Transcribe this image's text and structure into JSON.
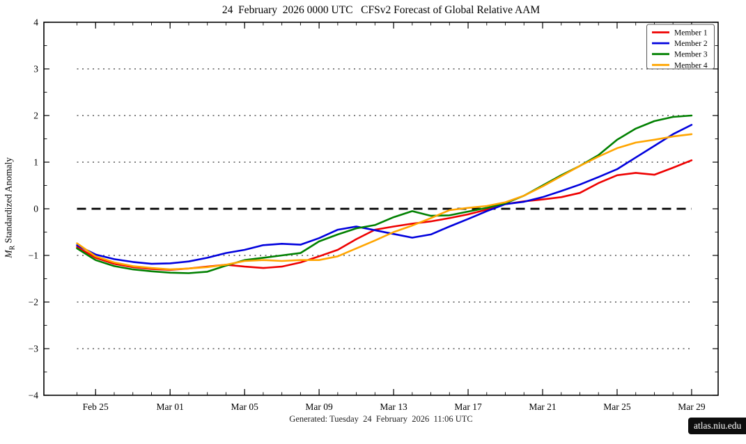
{
  "title": "24  February  2026 0000 UTC   CFSv2 Forecast of Global Relative AAM",
  "ylabel": {
    "var": "M",
    "sub": "R",
    "rest": " Standardized Anomaly"
  },
  "footer": {
    "generated": "Generated: Tuesday  24  February  2026  11:06 UTC",
    "badge": "atlas.niu.edu"
  },
  "colors": {
    "member1": "#ee0000",
    "member2": "#0000dd",
    "member3": "#008000",
    "member4": "#ffa500",
    "grid": "#808080",
    "zero_line": "#000000",
    "frame": "#000000",
    "legend_border": "#555555"
  },
  "chart_data": {
    "type": "line",
    "title": "24  February  2026 0000 UTC   CFSv2 Forecast of Global Relative AAM",
    "xlabel": "",
    "ylabel": "M_R Standardized Anomaly",
    "ylim": [
      -4,
      4
    ],
    "yticks": [
      4,
      3,
      2,
      1,
      0,
      -1,
      -2,
      -3,
      -4
    ],
    "ytick_labels": [
      "4",
      "3",
      "2",
      "1",
      "0",
      "−1",
      "−2",
      "−3",
      "−4"
    ],
    "gridlines_dotted": [
      3,
      2,
      1,
      -1,
      -2,
      -3
    ],
    "zero_dashed_line": 0,
    "grid": "horizontal-dotted",
    "legend_position": "top-right",
    "x": [
      "Feb 24",
      "Feb 25",
      "Feb 26",
      "Feb 27",
      "Feb 28",
      "Mar 01",
      "Mar 02",
      "Mar 03",
      "Mar 04",
      "Mar 05",
      "Mar 06",
      "Mar 07",
      "Mar 08",
      "Mar 09",
      "Mar 10",
      "Mar 11",
      "Mar 12",
      "Mar 13",
      "Mar 14",
      "Mar 15",
      "Mar 16",
      "Mar 17",
      "Mar 18",
      "Mar 19",
      "Mar 20",
      "Mar 21",
      "Mar 22",
      "Mar 23",
      "Mar 24",
      "Mar 25",
      "Mar 26",
      "Mar 27",
      "Mar 28",
      "Mar 29"
    ],
    "xtick_labels": [
      "Feb 25",
      "Mar 01",
      "Mar 05",
      "Mar 09",
      "Mar 13",
      "Mar 17",
      "Mar 21",
      "Mar 25",
      "Mar 29"
    ],
    "xtick_day_index": [
      1,
      5,
      9,
      13,
      17,
      21,
      25,
      29,
      33
    ],
    "series": [
      {
        "name": "Member 1",
        "color_key": "member1",
        "values": [
          -0.82,
          -1.05,
          -1.18,
          -1.25,
          -1.29,
          -1.31,
          -1.28,
          -1.24,
          -1.2,
          -1.24,
          -1.27,
          -1.24,
          -1.15,
          -1.02,
          -0.88,
          -0.65,
          -0.45,
          -0.38,
          -0.32,
          -0.27,
          -0.2,
          -0.12,
          -0.02,
          0.1,
          0.16,
          0.2,
          0.25,
          0.34,
          0.55,
          0.72,
          0.77,
          0.73,
          0.88,
          1.04
        ]
      },
      {
        "name": "Member 2",
        "color_key": "member2",
        "values": [
          -0.78,
          -0.98,
          -1.08,
          -1.14,
          -1.18,
          -1.17,
          -1.13,
          -1.05,
          -0.95,
          -0.88,
          -0.78,
          -0.75,
          -0.77,
          -0.63,
          -0.45,
          -0.38,
          -0.46,
          -0.54,
          -0.62,
          -0.55,
          -0.38,
          -0.22,
          -0.05,
          0.1,
          0.15,
          0.25,
          0.38,
          0.52,
          0.68,
          0.85,
          1.1,
          1.35,
          1.6,
          1.8
        ]
      },
      {
        "name": "Member 3",
        "color_key": "member3",
        "values": [
          -0.85,
          -1.1,
          -1.23,
          -1.3,
          -1.34,
          -1.37,
          -1.38,
          -1.35,
          -1.22,
          -1.1,
          -1.05,
          -1.0,
          -0.95,
          -0.7,
          -0.55,
          -0.42,
          -0.35,
          -0.18,
          -0.05,
          -0.15,
          -0.14,
          -0.06,
          0.02,
          0.12,
          0.28,
          0.5,
          0.72,
          0.92,
          1.15,
          1.48,
          1.72,
          1.88,
          1.97,
          2.0
        ]
      },
      {
        "name": "Member 4",
        "color_key": "member4",
        "values": [
          -0.74,
          -1.02,
          -1.15,
          -1.23,
          -1.27,
          -1.3,
          -1.28,
          -1.25,
          -1.2,
          -1.12,
          -1.1,
          -1.12,
          -1.1,
          -1.1,
          -1.02,
          -0.85,
          -0.68,
          -0.5,
          -0.36,
          -0.2,
          -0.03,
          0.02,
          0.06,
          0.14,
          0.28,
          0.48,
          0.7,
          0.92,
          1.12,
          1.3,
          1.42,
          1.48,
          1.55,
          1.6
        ]
      }
    ]
  }
}
